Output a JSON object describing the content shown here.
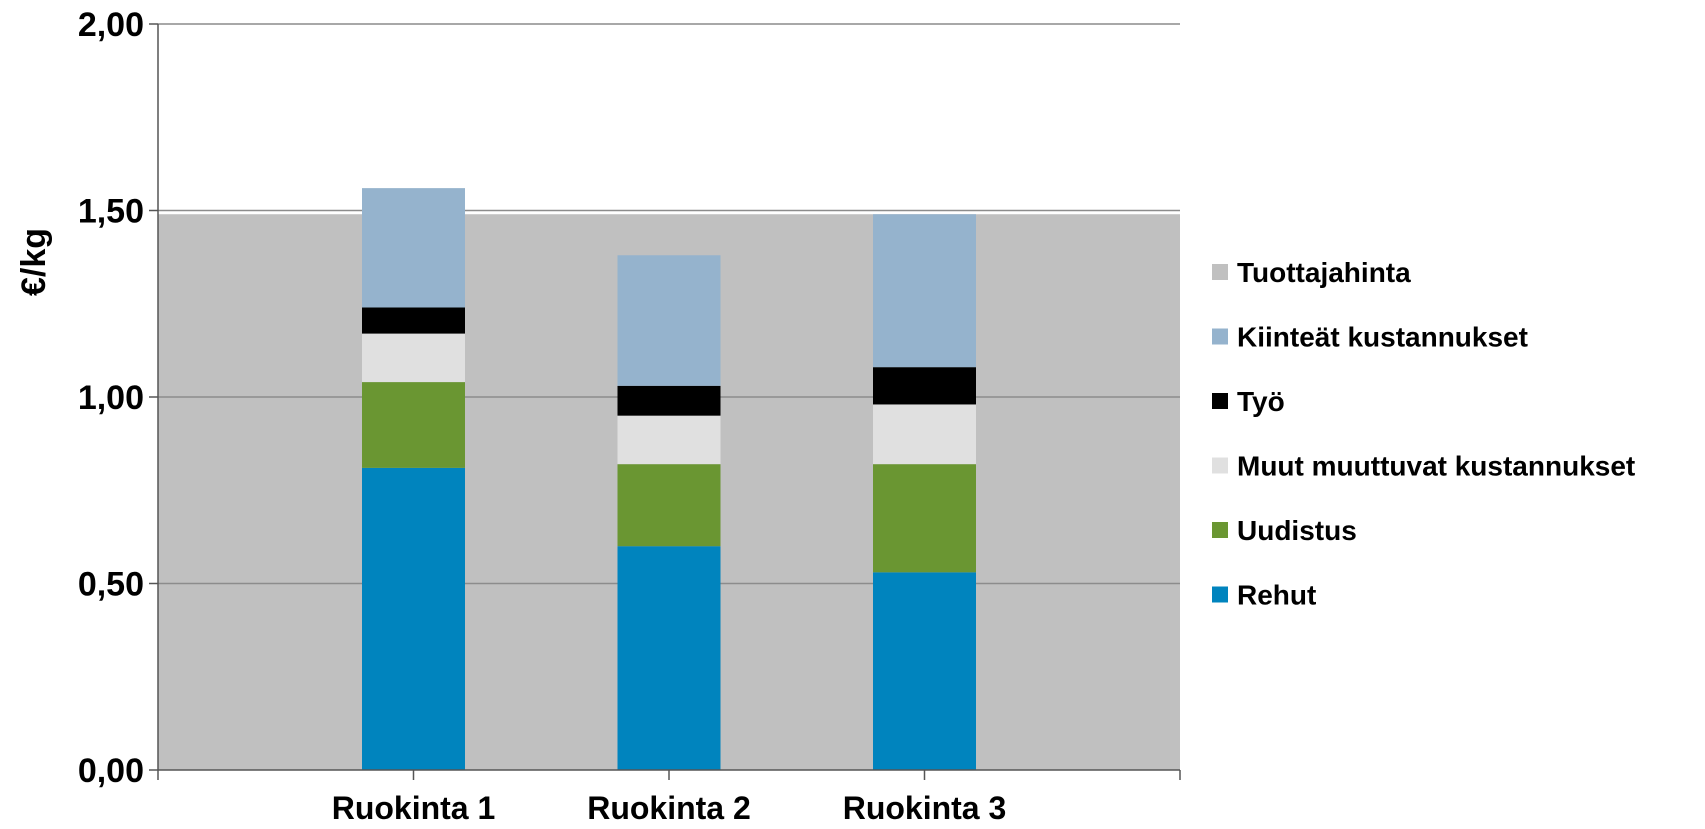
{
  "chart_data": {
    "type": "bar",
    "stacked": true,
    "title": "",
    "xlabel": "",
    "ylabel": "€/kg",
    "ylim": [
      0,
      2
    ],
    "yticks": [
      "0,00",
      "0,50",
      "1,00",
      "1,50",
      "2,00"
    ],
    "ytick_values": [
      0,
      0.5,
      1,
      1.5,
      2
    ],
    "categories": [
      "Ruokinta 1",
      "Ruokinta 2",
      "Ruokinta 3"
    ],
    "background_band": {
      "name": "Tuottajahinta",
      "value": 1.49,
      "color": "#c0c0c0"
    },
    "series": [
      {
        "name": "Rehut",
        "color": "#0084be",
        "values": [
          0.81,
          0.6,
          0.53
        ]
      },
      {
        "name": "Uudistus",
        "color": "#6a9632",
        "values": [
          0.23,
          0.22,
          0.29
        ]
      },
      {
        "name": "Muut muuttuvat kustannukset",
        "color": "#e0e0e0",
        "values": [
          0.13,
          0.13,
          0.16
        ]
      },
      {
        "name": "Työ",
        "color": "#000000",
        "values": [
          0.07,
          0.08,
          0.1
        ]
      },
      {
        "name": "Kiinteät kustannukset",
        "color": "#95b3cd",
        "values": [
          0.32,
          0.35,
          0.41
        ]
      }
    ],
    "legend": {
      "position": "right",
      "items": [
        {
          "name": "Tuottajahinta",
          "color": "#c0c0c0"
        },
        {
          "name": "Kiinteät kustannukset",
          "color": "#95b3cd"
        },
        {
          "name": "Työ",
          "color": "#000000"
        },
        {
          "name": "Muut muuttuvat kustannukset",
          "color": "#e0e0e0"
        },
        {
          "name": "Uudistus",
          "color": "#6a9632"
        },
        {
          "name": "Rehut",
          "color": "#0084be"
        }
      ]
    },
    "grid": true
  }
}
